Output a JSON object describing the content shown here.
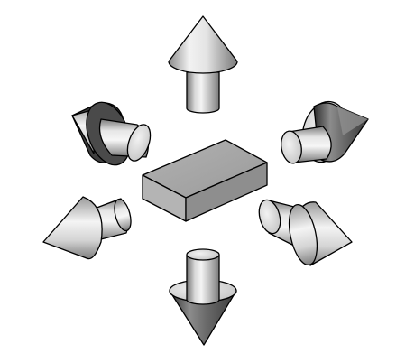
{
  "figure": {
    "description_items": [
      "center-block",
      "arrow-up",
      "arrow-down",
      "arrow-upper-left",
      "arrow-upper-right",
      "arrow-lower-left",
      "arrow-lower-right"
    ],
    "colors": {
      "background": "#ffffff",
      "outline": "#000000",
      "block_top": "#a8a8a8",
      "block_left": "#b6b6b6",
      "block_right": "#8c8c8c",
      "shading_light": "#f6f6f6",
      "shading_mid": "#b8b8b8",
      "shading_dark": "#5a5a5a"
    }
  }
}
